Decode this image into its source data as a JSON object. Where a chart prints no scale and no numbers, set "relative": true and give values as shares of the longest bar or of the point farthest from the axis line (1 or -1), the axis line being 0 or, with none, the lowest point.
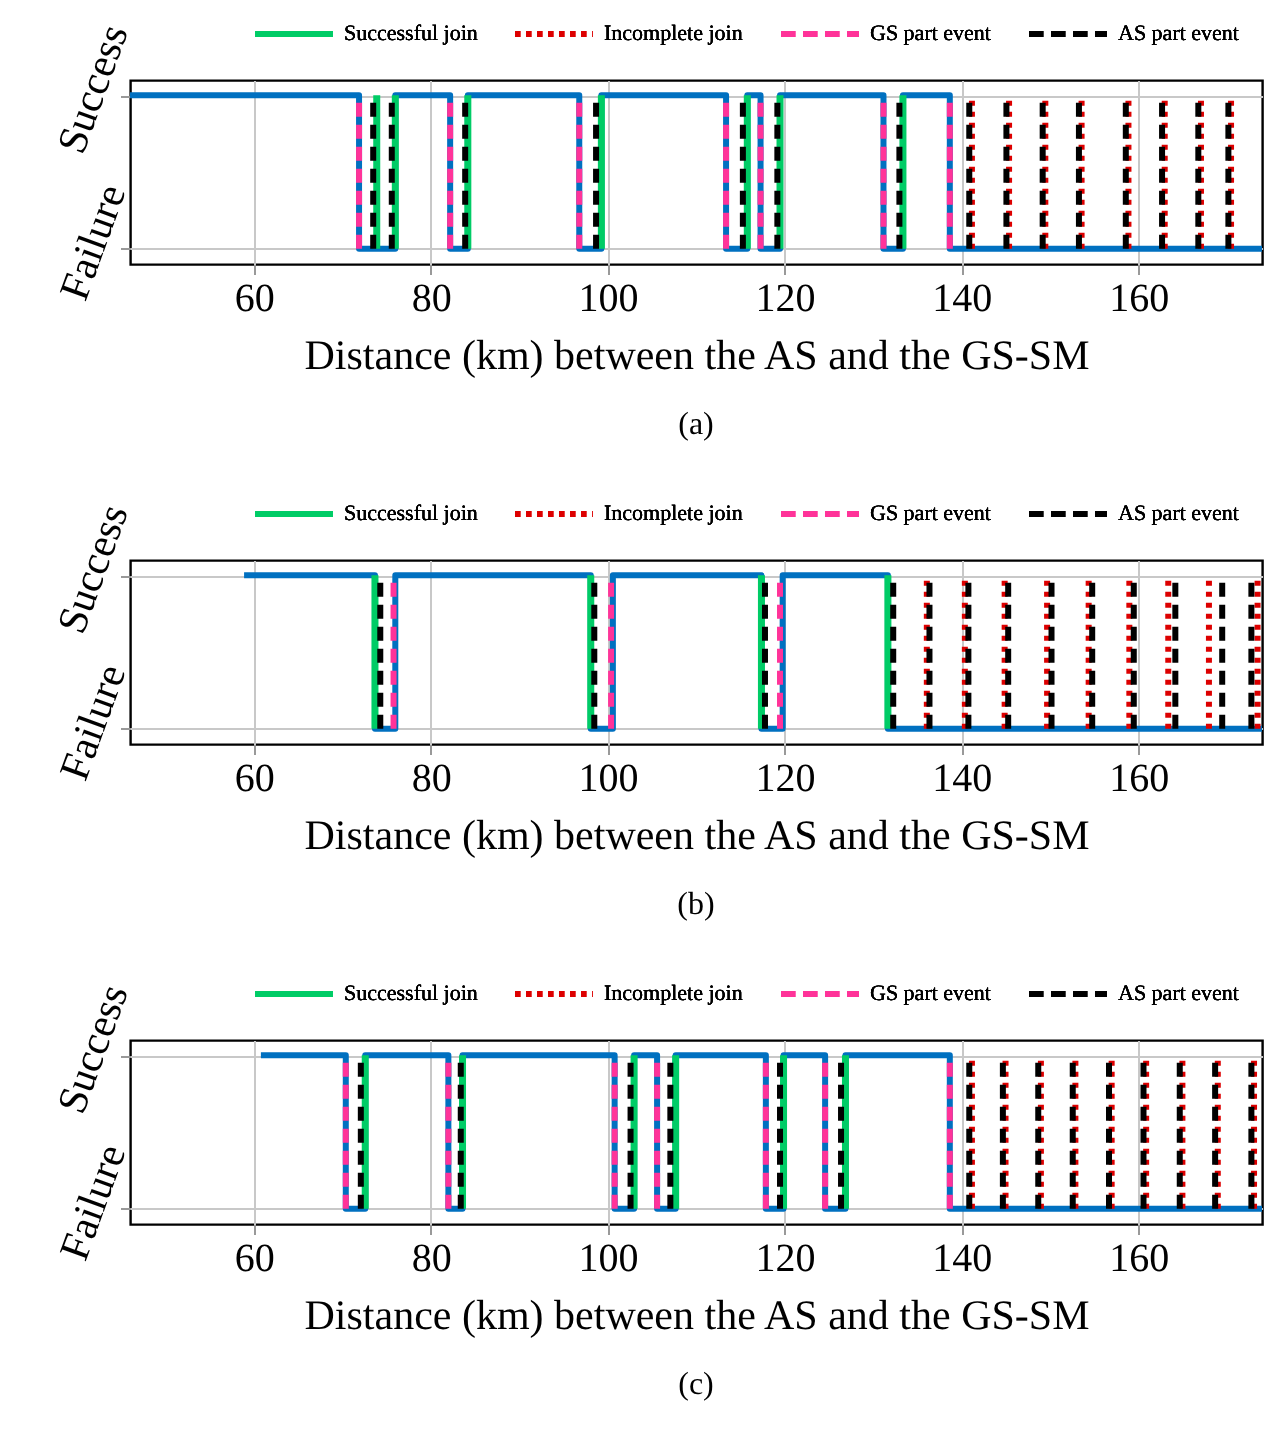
{
  "chart_data": [
    {
      "type": "line",
      "xlabel": "Distance (km) between the AS and the GS-SM",
      "xlim": [
        46,
        174
      ],
      "xticks": [
        60,
        80,
        100,
        120,
        140,
        160
      ],
      "relative": true,
      "grid": true,
      "legend": "top",
      "annotations": [
        "Success",
        "Failure",
        "(a)"
      ],
      "series": [
        {
          "type": "step",
          "color": "#0070c0",
          "x": [
            46,
            71.9,
            76.0,
            82.2,
            84.2,
            96.8,
            99.3,
            113.4,
            115.8,
            117.3,
            119.5,
            131.2,
            133.4,
            138.7,
            174
          ],
          "values": [
            1,
            0,
            1,
            0,
            1,
            0,
            1,
            0,
            1,
            0,
            1,
            0,
            1,
            0,
            0
          ]
        },
        {
          "name": "Successful join",
          "color": "#00cc66",
          "line_style": "solid",
          "x": [
            73.9,
            73.9,
            null,
            76.0,
            76.0,
            null,
            84.2,
            84.2,
            null,
            99.3,
            99.3,
            null,
            115.8,
            115.8,
            null,
            119.5,
            119.5,
            null,
            133.4,
            133.4,
            null
          ],
          "values": [
            0,
            1,
            null,
            0,
            1,
            null,
            0,
            1,
            null,
            0,
            1,
            null,
            0,
            1,
            null,
            0,
            1,
            null,
            0,
            1,
            null
          ]
        },
        {
          "name": "Incomplete join",
          "color": "#dd0000",
          "line_style": "dotted",
          "x": [
            141.2,
            141.2,
            null,
            145.4,
            145.4,
            null,
            149.5,
            149.5,
            null,
            153.6,
            153.6,
            null,
            158.9,
            158.9,
            null,
            163.0,
            163.0,
            null,
            167.1,
            167.1,
            null,
            170.5,
            170.5,
            null
          ],
          "values": [
            0,
            1,
            null,
            0,
            1,
            null,
            0,
            1,
            null,
            0,
            1,
            null,
            0,
            1,
            null,
            0,
            1,
            null,
            0,
            1,
            null,
            0,
            1,
            null
          ]
        },
        {
          "name": "GS part event",
          "color": "#ff3399",
          "line_style": "dashed",
          "x": [
            71.9,
            71.9,
            null,
            82.2,
            82.2,
            null,
            96.8,
            96.8,
            null,
            113.4,
            113.4,
            null,
            117.3,
            117.3,
            null,
            131.2,
            131.2,
            null,
            138.7,
            138.7,
            null
          ],
          "values": [
            0,
            1,
            null,
            0,
            1,
            null,
            0,
            1,
            null,
            0,
            1,
            null,
            0,
            1,
            null,
            0,
            1,
            null,
            0,
            1,
            null
          ]
        },
        {
          "name": "AS part event",
          "color": "#000000",
          "line_style": "dashed",
          "x": [
            73.5,
            73.5,
            null,
            75.6,
            75.6,
            null,
            83.9,
            83.9,
            null,
            98.7,
            98.7,
            null,
            115.3,
            115.3,
            null,
            119.2,
            119.2,
            null,
            133.0,
            133.0,
            null,
            140.9,
            140.9,
            null,
            145.1,
            145.1,
            null,
            149.2,
            149.2,
            null,
            153.3,
            153.3,
            null,
            158.6,
            158.6,
            null,
            162.7,
            162.7,
            null,
            166.8,
            166.8,
            null,
            170.2,
            170.2,
            null
          ],
          "values": [
            0,
            1,
            null,
            0,
            1,
            null,
            0,
            1,
            null,
            0,
            1,
            null,
            0,
            1,
            null,
            0,
            1,
            null,
            0,
            1,
            null,
            0,
            1,
            null,
            0,
            1,
            null,
            0,
            1,
            null,
            0,
            1,
            null,
            0,
            1,
            null,
            0,
            1,
            null,
            0,
            1,
            null,
            0,
            1,
            null
          ]
        }
      ]
    },
    {
      "type": "line",
      "xlabel": "Distance (km) between the AS and the GS-SM",
      "xlim": [
        46,
        174
      ],
      "xticks": [
        60,
        80,
        100,
        120,
        140,
        160
      ],
      "relative": true,
      "grid": true,
      "legend": "top",
      "annotations": [
        "Success",
        "Failure",
        "(b)"
      ],
      "series": [
        {
          "type": "step",
          "color": "#0070c0",
          "x": [
            58.9,
            73.7,
            76.0,
            98.1,
            100.6,
            117.4,
            119.8,
            131.7,
            174
          ],
          "values": [
            1,
            0,
            1,
            0,
            1,
            0,
            1,
            0,
            0
          ]
        },
        {
          "name": "Successful join",
          "color": "#00cc66",
          "line_style": "solid",
          "x": [
            73.7,
            73.7,
            null,
            98.1,
            98.1,
            null,
            117.4,
            117.4,
            null,
            131.7,
            131.7,
            null
          ],
          "values": [
            0,
            1,
            null,
            0,
            1,
            null,
            0,
            1,
            null,
            0,
            1,
            null
          ]
        },
        {
          "name": "Incomplete join",
          "color": "#dd0000",
          "line_style": "dotted",
          "x": [
            136.1,
            136.1,
            null,
            140.4,
            140.4,
            null,
            144.9,
            144.9,
            null,
            149.7,
            149.7,
            null,
            154.4,
            154.4,
            null,
            159.0,
            159.0,
            null,
            163.4,
            163.4,
            null,
            168.0,
            168.0,
            null,
            173.5,
            173.5,
            null
          ],
          "values": [
            0,
            1,
            null,
            0,
            1,
            null,
            0,
            1,
            null,
            0,
            1,
            null,
            0,
            1,
            null,
            0,
            1,
            null,
            0,
            1,
            null,
            0,
            1,
            null,
            0,
            1,
            null
          ]
        },
        {
          "name": "GS part event",
          "color": "#ff3399",
          "line_style": "dashed",
          "x": [
            75.8,
            75.8,
            null,
            100.4,
            100.4,
            null,
            119.5,
            119.5,
            null
          ],
          "values": [
            0,
            1,
            null,
            0,
            1,
            null,
            0,
            1,
            null
          ]
        },
        {
          "name": "AS part event",
          "color": "#000000",
          "line_style": "dashed",
          "x": [
            74.3,
            74.3,
            null,
            98.5,
            98.5,
            null,
            117.8,
            117.8,
            null,
            132.3,
            132.3,
            null,
            136.4,
            136.4,
            null,
            140.8,
            140.8,
            null,
            145.3,
            145.3,
            null,
            150.2,
            150.2,
            null,
            154.8,
            154.8,
            null,
            159.5,
            159.5,
            null,
            164.2,
            164.2,
            null,
            169.5,
            169.5,
            null,
            172.8,
            172.8,
            null
          ],
          "values": [
            0,
            1,
            null,
            0,
            1,
            null,
            0,
            1,
            null,
            0,
            1,
            null,
            0,
            1,
            null,
            0,
            1,
            null,
            0,
            1,
            null,
            0,
            1,
            null,
            0,
            1,
            null,
            0,
            1,
            null,
            0,
            1,
            null,
            0,
            1,
            null,
            0,
            1,
            null
          ]
        }
      ]
    },
    {
      "type": "line",
      "xlabel": "Distance (km) between the AS and the GS-SM",
      "xlim": [
        46,
        174
      ],
      "xticks": [
        60,
        80,
        100,
        120,
        140,
        160
      ],
      "relative": true,
      "grid": true,
      "legend": "top",
      "annotations": [
        "Success",
        "Failure",
        "(c)"
      ],
      "series": [
        {
          "type": "step",
          "color": "#0070c0",
          "x": [
            60.8,
            70.4,
            72.6,
            82.0,
            83.6,
            100.8,
            103.0,
            105.6,
            107.7,
            117.9,
            119.9,
            124.6,
            126.9,
            138.7,
            174
          ],
          "values": [
            1,
            0,
            1,
            0,
            1,
            0,
            1,
            0,
            1,
            0,
            1,
            0,
            1,
            0,
            0
          ]
        },
        {
          "name": "Successful join",
          "color": "#00cc66",
          "line_style": "solid",
          "x": [
            72.6,
            72.6,
            null,
            83.6,
            83.6,
            null,
            103.0,
            103.0,
            null,
            107.7,
            107.7,
            null,
            119.9,
            119.9,
            null,
            126.9,
            126.9,
            null
          ],
          "values": [
            0,
            1,
            null,
            0,
            1,
            null,
            0,
            1,
            null,
            0,
            1,
            null,
            0,
            1,
            null,
            0,
            1,
            null
          ]
        },
        {
          "name": "Incomplete join",
          "color": "#dd0000",
          "line_style": "dotted",
          "x": [
            141.2,
            141.2,
            null,
            145.0,
            145.0,
            null,
            149.0,
            149.0,
            null,
            152.9,
            152.9,
            null,
            157.0,
            157.0,
            null,
            160.9,
            160.9,
            null,
            165.0,
            165.0,
            null,
            169.0,
            169.0,
            null,
            173.1,
            173.1,
            null
          ],
          "values": [
            0,
            1,
            null,
            0,
            1,
            null,
            0,
            1,
            null,
            0,
            1,
            null,
            0,
            1,
            null,
            0,
            1,
            null,
            0,
            1,
            null,
            0,
            1,
            null,
            0,
            1,
            null
          ]
        },
        {
          "name": "GS part event",
          "color": "#ff3399",
          "line_style": "dashed",
          "x": [
            70.4,
            70.4,
            null,
            82.0,
            82.0,
            null,
            100.8,
            100.8,
            null,
            105.6,
            105.6,
            null,
            117.9,
            117.9,
            null,
            124.6,
            124.6,
            null,
            138.7,
            138.7,
            null
          ],
          "values": [
            0,
            1,
            null,
            0,
            1,
            null,
            0,
            1,
            null,
            0,
            1,
            null,
            0,
            1,
            null,
            0,
            1,
            null,
            0,
            1,
            null
          ]
        },
        {
          "name": "AS part event",
          "color": "#000000",
          "line_style": "dashed",
          "x": [
            72.1,
            72.1,
            null,
            83.4,
            83.4,
            null,
            102.6,
            102.6,
            null,
            107.1,
            107.1,
            null,
            119.5,
            119.5,
            null,
            126.4,
            126.4,
            null,
            140.9,
            140.9,
            null,
            144.7,
            144.7,
            null,
            148.7,
            148.7,
            null,
            152.6,
            152.6,
            null,
            156.7,
            156.7,
            null,
            160.6,
            160.6,
            null,
            164.7,
            164.7,
            null,
            168.7,
            168.7,
            null,
            172.8,
            172.8,
            null
          ],
          "values": [
            0,
            1,
            null,
            0,
            1,
            null,
            0,
            1,
            null,
            0,
            1,
            null,
            0,
            1,
            null,
            0,
            1,
            null,
            0,
            1,
            null,
            0,
            1,
            null,
            0,
            1,
            null,
            0,
            1,
            null,
            0,
            1,
            null,
            0,
            1,
            null,
            0,
            1,
            null,
            0,
            1,
            null,
            0,
            1,
            null
          ]
        }
      ]
    }
  ]
}
